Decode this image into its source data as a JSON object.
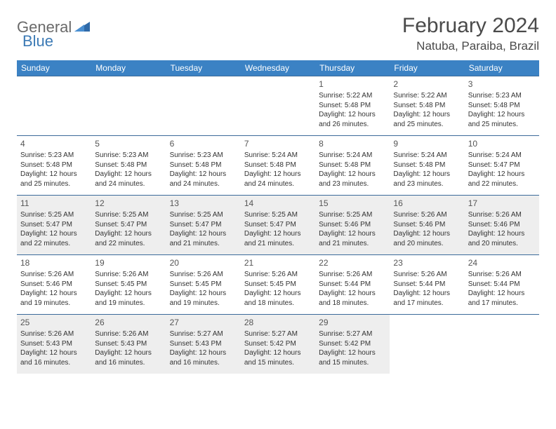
{
  "logo": {
    "text1": "General",
    "text2": "Blue"
  },
  "title": "February 2024",
  "location": "Natuba, Paraiba, Brazil",
  "colors": {
    "header_bg": "#3b82c4",
    "header_text": "#ffffff",
    "row_border": "#3b6a9a",
    "shaded_bg": "#eeeeee",
    "body_text": "#333333",
    "logo_gray": "#6a6a6a",
    "logo_blue": "#3c7ab5"
  },
  "day_names": [
    "Sunday",
    "Monday",
    "Tuesday",
    "Wednesday",
    "Thursday",
    "Friday",
    "Saturday"
  ],
  "weeks": [
    {
      "shaded": false,
      "days": [
        null,
        null,
        null,
        null,
        {
          "num": "1",
          "sunrise": "Sunrise: 5:22 AM",
          "sunset": "Sunset: 5:48 PM",
          "daylight": "Daylight: 12 hours and 26 minutes."
        },
        {
          "num": "2",
          "sunrise": "Sunrise: 5:22 AM",
          "sunset": "Sunset: 5:48 PM",
          "daylight": "Daylight: 12 hours and 25 minutes."
        },
        {
          "num": "3",
          "sunrise": "Sunrise: 5:23 AM",
          "sunset": "Sunset: 5:48 PM",
          "daylight": "Daylight: 12 hours and 25 minutes."
        }
      ]
    },
    {
      "shaded": false,
      "days": [
        {
          "num": "4",
          "sunrise": "Sunrise: 5:23 AM",
          "sunset": "Sunset: 5:48 PM",
          "daylight": "Daylight: 12 hours and 25 minutes."
        },
        {
          "num": "5",
          "sunrise": "Sunrise: 5:23 AM",
          "sunset": "Sunset: 5:48 PM",
          "daylight": "Daylight: 12 hours and 24 minutes."
        },
        {
          "num": "6",
          "sunrise": "Sunrise: 5:23 AM",
          "sunset": "Sunset: 5:48 PM",
          "daylight": "Daylight: 12 hours and 24 minutes."
        },
        {
          "num": "7",
          "sunrise": "Sunrise: 5:24 AM",
          "sunset": "Sunset: 5:48 PM",
          "daylight": "Daylight: 12 hours and 24 minutes."
        },
        {
          "num": "8",
          "sunrise": "Sunrise: 5:24 AM",
          "sunset": "Sunset: 5:48 PM",
          "daylight": "Daylight: 12 hours and 23 minutes."
        },
        {
          "num": "9",
          "sunrise": "Sunrise: 5:24 AM",
          "sunset": "Sunset: 5:48 PM",
          "daylight": "Daylight: 12 hours and 23 minutes."
        },
        {
          "num": "10",
          "sunrise": "Sunrise: 5:24 AM",
          "sunset": "Sunset: 5:47 PM",
          "daylight": "Daylight: 12 hours and 22 minutes."
        }
      ]
    },
    {
      "shaded": true,
      "days": [
        {
          "num": "11",
          "sunrise": "Sunrise: 5:25 AM",
          "sunset": "Sunset: 5:47 PM",
          "daylight": "Daylight: 12 hours and 22 minutes."
        },
        {
          "num": "12",
          "sunrise": "Sunrise: 5:25 AM",
          "sunset": "Sunset: 5:47 PM",
          "daylight": "Daylight: 12 hours and 22 minutes."
        },
        {
          "num": "13",
          "sunrise": "Sunrise: 5:25 AM",
          "sunset": "Sunset: 5:47 PM",
          "daylight": "Daylight: 12 hours and 21 minutes."
        },
        {
          "num": "14",
          "sunrise": "Sunrise: 5:25 AM",
          "sunset": "Sunset: 5:47 PM",
          "daylight": "Daylight: 12 hours and 21 minutes."
        },
        {
          "num": "15",
          "sunrise": "Sunrise: 5:25 AM",
          "sunset": "Sunset: 5:46 PM",
          "daylight": "Daylight: 12 hours and 21 minutes."
        },
        {
          "num": "16",
          "sunrise": "Sunrise: 5:26 AM",
          "sunset": "Sunset: 5:46 PM",
          "daylight": "Daylight: 12 hours and 20 minutes."
        },
        {
          "num": "17",
          "sunrise": "Sunrise: 5:26 AM",
          "sunset": "Sunset: 5:46 PM",
          "daylight": "Daylight: 12 hours and 20 minutes."
        }
      ]
    },
    {
      "shaded": false,
      "days": [
        {
          "num": "18",
          "sunrise": "Sunrise: 5:26 AM",
          "sunset": "Sunset: 5:46 PM",
          "daylight": "Daylight: 12 hours and 19 minutes."
        },
        {
          "num": "19",
          "sunrise": "Sunrise: 5:26 AM",
          "sunset": "Sunset: 5:45 PM",
          "daylight": "Daylight: 12 hours and 19 minutes."
        },
        {
          "num": "20",
          "sunrise": "Sunrise: 5:26 AM",
          "sunset": "Sunset: 5:45 PM",
          "daylight": "Daylight: 12 hours and 19 minutes."
        },
        {
          "num": "21",
          "sunrise": "Sunrise: 5:26 AM",
          "sunset": "Sunset: 5:45 PM",
          "daylight": "Daylight: 12 hours and 18 minutes."
        },
        {
          "num": "22",
          "sunrise": "Sunrise: 5:26 AM",
          "sunset": "Sunset: 5:44 PM",
          "daylight": "Daylight: 12 hours and 18 minutes."
        },
        {
          "num": "23",
          "sunrise": "Sunrise: 5:26 AM",
          "sunset": "Sunset: 5:44 PM",
          "daylight": "Daylight: 12 hours and 17 minutes."
        },
        {
          "num": "24",
          "sunrise": "Sunrise: 5:26 AM",
          "sunset": "Sunset: 5:44 PM",
          "daylight": "Daylight: 12 hours and 17 minutes."
        }
      ]
    },
    {
      "shaded": true,
      "days": [
        {
          "num": "25",
          "sunrise": "Sunrise: 5:26 AM",
          "sunset": "Sunset: 5:43 PM",
          "daylight": "Daylight: 12 hours and 16 minutes."
        },
        {
          "num": "26",
          "sunrise": "Sunrise: 5:26 AM",
          "sunset": "Sunset: 5:43 PM",
          "daylight": "Daylight: 12 hours and 16 minutes."
        },
        {
          "num": "27",
          "sunrise": "Sunrise: 5:27 AM",
          "sunset": "Sunset: 5:43 PM",
          "daylight": "Daylight: 12 hours and 16 minutes."
        },
        {
          "num": "28",
          "sunrise": "Sunrise: 5:27 AM",
          "sunset": "Sunset: 5:42 PM",
          "daylight": "Daylight: 12 hours and 15 minutes."
        },
        {
          "num": "29",
          "sunrise": "Sunrise: 5:27 AM",
          "sunset": "Sunset: 5:42 PM",
          "daylight": "Daylight: 12 hours and 15 minutes."
        },
        null,
        null
      ]
    }
  ]
}
